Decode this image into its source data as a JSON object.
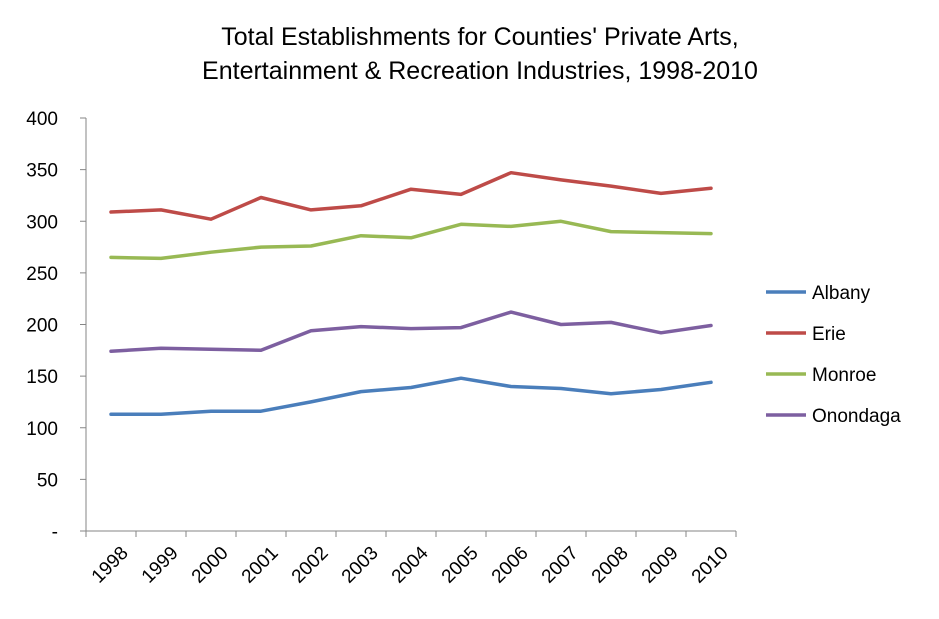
{
  "chart_data": {
    "type": "line",
    "title_lines": [
      "Total Establishments for Counties' Private Arts,",
      "Entertainment & Recreation Industries, 1998-2010"
    ],
    "xlabel": "",
    "ylabel": "",
    "categories": [
      "1998",
      "1999",
      "2000",
      "2001",
      "2002",
      "2003",
      "2004",
      "2005",
      "2006",
      "2007",
      "2008",
      "2009",
      "2010"
    ],
    "y_tick_labels": [
      "-",
      "50",
      "100",
      "150",
      "200",
      "250",
      "300",
      "350",
      "400"
    ],
    "ylim": [
      0,
      400
    ],
    "grid": false,
    "legend_position": "right",
    "series": [
      {
        "name": "Albany",
        "color": "#4a7ebb",
        "values": [
          113,
          113,
          116,
          116,
          125,
          135,
          139,
          148,
          140,
          138,
          133,
          137,
          144
        ]
      },
      {
        "name": "Erie",
        "color": "#be4b48",
        "values": [
          309,
          311,
          302,
          323,
          311,
          315,
          331,
          326,
          347,
          340,
          334,
          327,
          332
        ]
      },
      {
        "name": "Monroe",
        "color": "#98b954",
        "values": [
          265,
          264,
          270,
          275,
          276,
          286,
          284,
          297,
          295,
          300,
          290,
          289,
          288
        ]
      },
      {
        "name": "Onondaga",
        "color": "#7d5fa0",
        "values": [
          174,
          177,
          176,
          175,
          194,
          198,
          196,
          197,
          212,
          200,
          202,
          192,
          199
        ]
      }
    ]
  }
}
